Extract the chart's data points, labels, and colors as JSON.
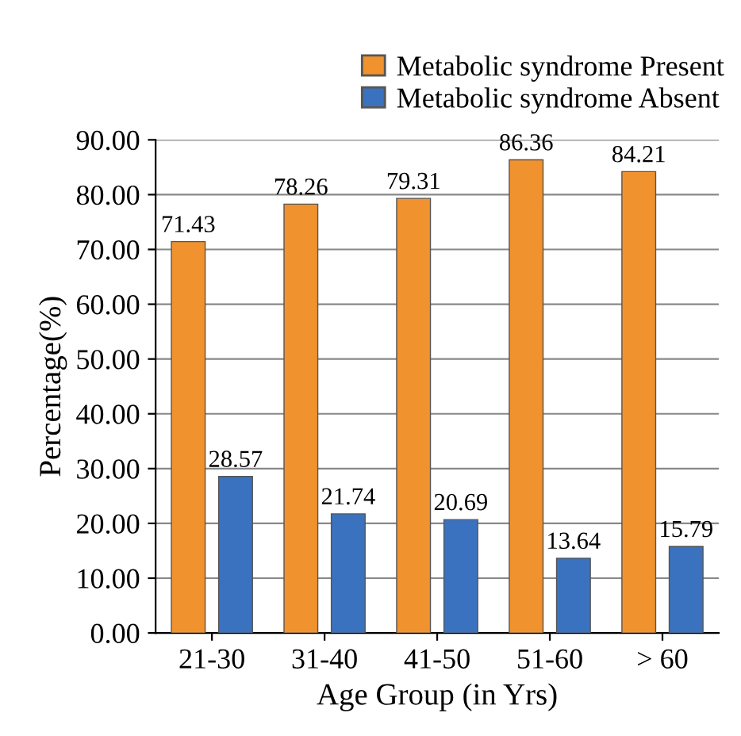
{
  "chart_data": {
    "type": "bar",
    "xlabel": "Age Group (in Yrs)",
    "ylabel": "Percentage(%)",
    "categories": [
      "21-30",
      "31-40",
      "41-50",
      "51-60",
      "> 60"
    ],
    "series": [
      {
        "name": "Metabolic syndrome Present",
        "color": "#f0922e",
        "values": [
          71.43,
          78.26,
          79.31,
          86.36,
          84.21
        ]
      },
      {
        "name": "Metabolic syndrome Absent",
        "color": "#3b72bf",
        "values": [
          28.57,
          21.74,
          20.69,
          13.64,
          15.79
        ]
      }
    ],
    "ylim": [
      0,
      90
    ],
    "yticks": [
      {
        "value": 0,
        "label": "0.00"
      },
      {
        "value": 10,
        "label": "10.00"
      },
      {
        "value": 20,
        "label": "20.00"
      },
      {
        "value": 30,
        "label": "30.00"
      },
      {
        "value": 40,
        "label": "40.00"
      },
      {
        "value": 50,
        "label": "50.00"
      },
      {
        "value": 60,
        "label": "60.00"
      },
      {
        "value": 70,
        "label": "70.00"
      },
      {
        "value": 80,
        "label": "80.00"
      },
      {
        "value": 90,
        "label": "90.00"
      }
    ],
    "grid": "y",
    "legend": "top right",
    "data_labels": true
  }
}
